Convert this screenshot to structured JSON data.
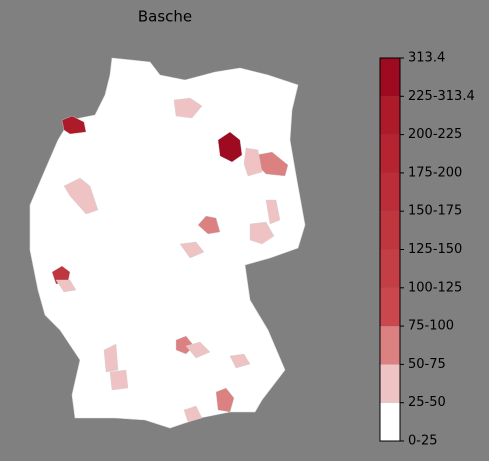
{
  "title": "Basche",
  "colorbar": {
    "labels": [
      "0-25",
      "25-50",
      "50-75",
      "75-100",
      "100-125",
      "125-150",
      "150-175",
      "175-200",
      "200-225",
      "225-313.4",
      "313.4"
    ],
    "colors": [
      "#ffffff",
      "#efc3c3",
      "#dc8181",
      "#c9474d",
      "#c43e46",
      "#c0363f",
      "#bb2d38",
      "#b52430",
      "#ad1a29",
      "#9e0a1f"
    ]
  }
}
